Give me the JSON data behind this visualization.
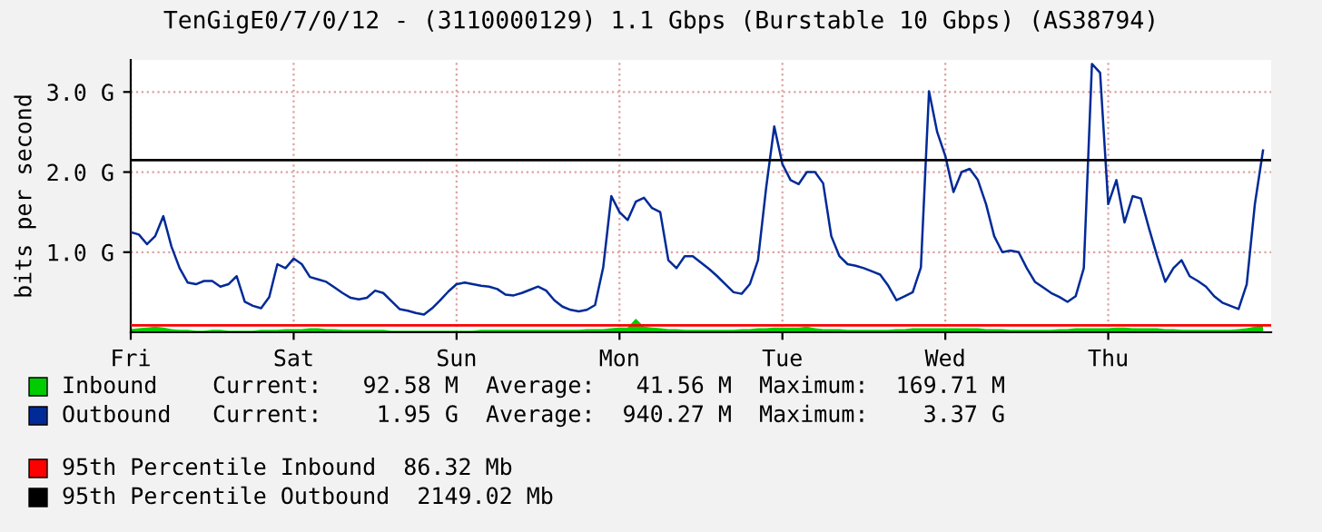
{
  "chart_data": {
    "type": "line",
    "title": "TenGigE0/7/0/12 - (3110000129) 1.1 Gbps (Burstable 10 Gbps) (AS38794)",
    "ylabel": "bits per second",
    "categories": [
      "Fri",
      null,
      null,
      null,
      null,
      null,
      null,
      null,
      null,
      null,
      null,
      null,
      null,
      null,
      null,
      null,
      null,
      null,
      null,
      null,
      "Sat",
      null,
      null,
      null,
      null,
      null,
      null,
      null,
      null,
      null,
      null,
      null,
      null,
      null,
      null,
      null,
      null,
      null,
      null,
      null,
      "Sun",
      null,
      null,
      null,
      null,
      null,
      null,
      null,
      null,
      null,
      null,
      null,
      null,
      null,
      null,
      null,
      null,
      null,
      null,
      null,
      "Mon",
      null,
      null,
      null,
      null,
      null,
      null,
      null,
      null,
      null,
      null,
      null,
      null,
      null,
      null,
      null,
      null,
      null,
      null,
      null,
      "Tue",
      null,
      null,
      null,
      null,
      null,
      null,
      null,
      null,
      null,
      null,
      null,
      null,
      null,
      null,
      null,
      null,
      null,
      null,
      null,
      "Wed",
      null,
      null,
      null,
      null,
      null,
      null,
      null,
      null,
      null,
      null,
      null,
      null,
      null,
      null,
      null,
      null,
      null,
      null,
      null,
      "Thu",
      null,
      null,
      null,
      null,
      null,
      null,
      null,
      null,
      null,
      null,
      null,
      null,
      null,
      null,
      null,
      null,
      null,
      null,
      null
    ],
    "ylim": [
      0,
      3.4
    ],
    "yticks": [
      {
        "value": 1,
        "label": "1.0 G"
      },
      {
        "value": 2,
        "label": "2.0 G"
      },
      {
        "value": 3,
        "label": "3.0 G"
      }
    ],
    "grid": true,
    "legend": "bottom",
    "series": [
      {
        "name": "Inbound",
        "type": "area",
        "color": "#00cc00",
        "values": [
          0.04,
          0.05,
          0.06,
          0.07,
          0.06,
          0.04,
          0.03,
          0.03,
          0.02,
          0.02,
          0.03,
          0.03,
          0.02,
          0.02,
          0.02,
          0.02,
          0.03,
          0.03,
          0.03,
          0.04,
          0.04,
          0.04,
          0.05,
          0.05,
          0.04,
          0.04,
          0.03,
          0.03,
          0.03,
          0.03,
          0.03,
          0.03,
          0.02,
          0.02,
          0.02,
          0.02,
          0.02,
          0.02,
          0.02,
          0.02,
          0.02,
          0.02,
          0.02,
          0.03,
          0.03,
          0.03,
          0.03,
          0.03,
          0.03,
          0.03,
          0.03,
          0.03,
          0.03,
          0.03,
          0.03,
          0.03,
          0.04,
          0.04,
          0.04,
          0.05,
          0.06,
          0.06,
          0.17,
          0.07,
          0.06,
          0.05,
          0.04,
          0.04,
          0.03,
          0.03,
          0.03,
          0.03,
          0.03,
          0.03,
          0.03,
          0.04,
          0.04,
          0.05,
          0.05,
          0.06,
          0.06,
          0.06,
          0.06,
          0.07,
          0.05,
          0.04,
          0.04,
          0.04,
          0.03,
          0.03,
          0.03,
          0.03,
          0.03,
          0.03,
          0.04,
          0.04,
          0.05,
          0.05,
          0.05,
          0.05,
          0.05,
          0.05,
          0.05,
          0.05,
          0.05,
          0.04,
          0.04,
          0.04,
          0.03,
          0.03,
          0.03,
          0.03,
          0.03,
          0.03,
          0.04,
          0.04,
          0.05,
          0.05,
          0.05,
          0.05,
          0.05,
          0.06,
          0.06,
          0.05,
          0.05,
          0.05,
          0.05,
          0.04,
          0.04,
          0.03,
          0.03,
          0.03,
          0.03,
          0.03,
          0.03,
          0.03,
          0.04,
          0.05,
          0.07,
          0.09
        ]
      },
      {
        "name": "Outbound",
        "color": "#002a97",
        "values": [
          1.25,
          1.22,
          1.1,
          1.2,
          1.45,
          1.07,
          0.8,
          0.62,
          0.6,
          0.64,
          0.64,
          0.57,
          0.6,
          0.7,
          0.38,
          0.33,
          0.3,
          0.44,
          0.85,
          0.8,
          0.92,
          0.85,
          0.69,
          0.66,
          0.63,
          0.56,
          0.49,
          0.43,
          0.41,
          0.43,
          0.52,
          0.49,
          0.39,
          0.29,
          0.27,
          0.24,
          0.22,
          0.3,
          0.4,
          0.51,
          0.6,
          0.62,
          0.6,
          0.58,
          0.57,
          0.54,
          0.47,
          0.46,
          0.49,
          0.53,
          0.57,
          0.52,
          0.4,
          0.32,
          0.28,
          0.26,
          0.28,
          0.34,
          0.81,
          1.7,
          1.5,
          1.4,
          1.63,
          1.68,
          1.55,
          1.5,
          0.9,
          0.8,
          0.95,
          0.95,
          0.87,
          0.79,
          0.7,
          0.6,
          0.5,
          0.48,
          0.6,
          0.9,
          1.8,
          2.57,
          2.1,
          1.9,
          1.85,
          2.0,
          2.0,
          1.86,
          1.2,
          0.95,
          0.85,
          0.83,
          0.8,
          0.76,
          0.72,
          0.58,
          0.4,
          0.45,
          0.5,
          0.81,
          3.01,
          2.5,
          2.2,
          1.75,
          2.0,
          2.04,
          1.9,
          1.6,
          1.2,
          1.0,
          1.02,
          1.0,
          0.8,
          0.63,
          0.56,
          0.49,
          0.44,
          0.38,
          0.45,
          0.8,
          3.35,
          3.24,
          1.6,
          1.9,
          1.37,
          1.7,
          1.67,
          1.3,
          0.95,
          0.63,
          0.8,
          0.9,
          0.7,
          0.64,
          0.57,
          0.45,
          0.37,
          0.33,
          0.29,
          0.6,
          1.6,
          2.27
        ]
      }
    ],
    "ref_lines": [
      {
        "axis": "y",
        "value": 0.08632,
        "label": "95th Percentile Inbound  86.32 Mb",
        "color": "#ff0000"
      },
      {
        "axis": "y",
        "value": 2.14902,
        "label": "95th Percentile Outbound  2149.02 Mb",
        "color": "#000000"
      }
    ],
    "annotations": [
      "Current:   92.58 M  Average:   41.56 M  Maximum:  169.71 M",
      "Current:    1.95 G  Average:  940.27 M  Maximum:    3.37 G"
    ]
  }
}
